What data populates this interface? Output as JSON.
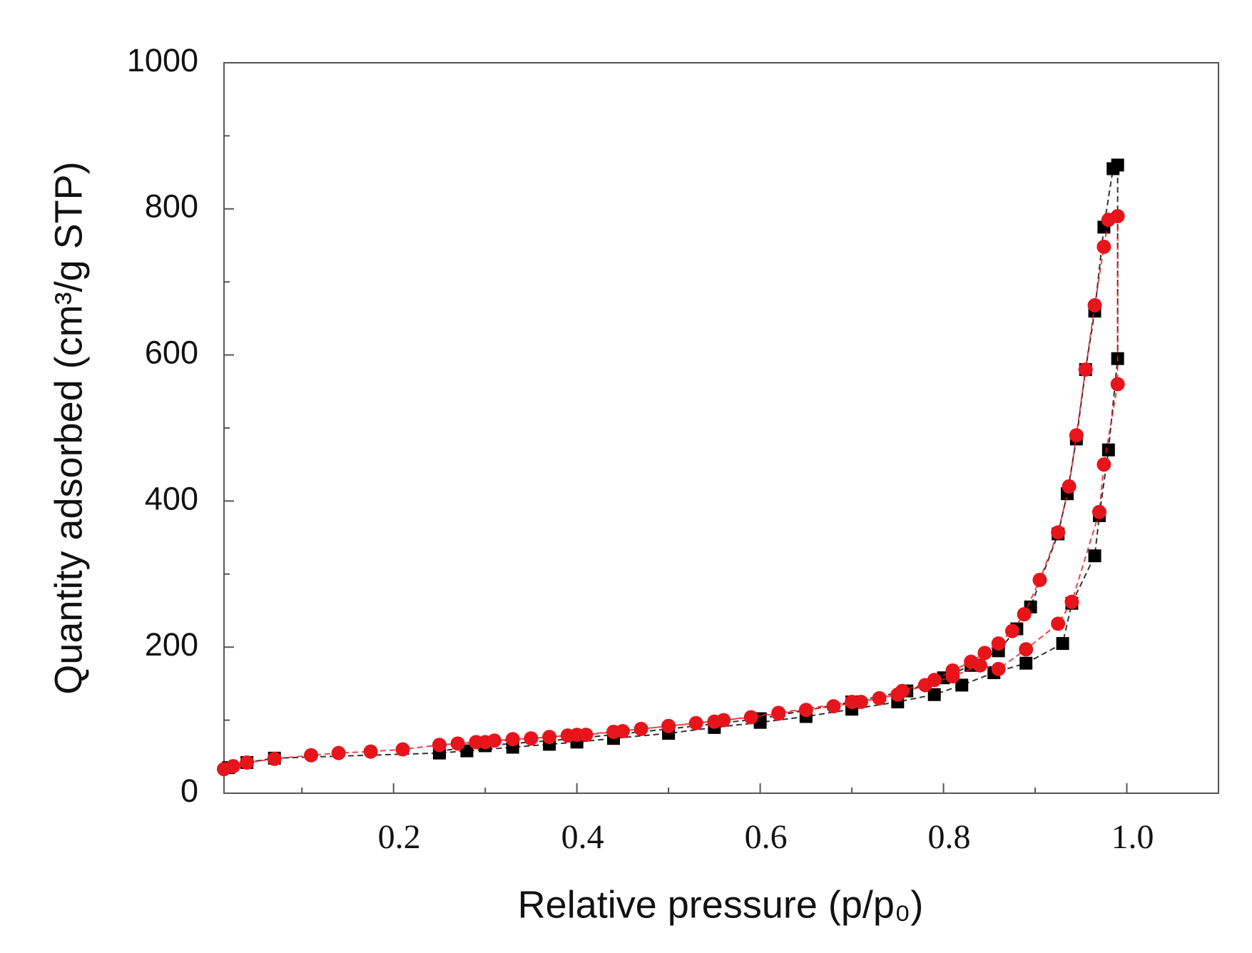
{
  "chart_data": {
    "type": "line",
    "xlabel": "Relative pressure (p/p₀)",
    "ylabel": "Quantity adsorbed (cm³/g STP)",
    "xlim": [
      0.015,
      1.1
    ],
    "ylim": [
      0,
      1000
    ],
    "xticks": [
      0.2,
      0.4,
      0.6,
      0.8,
      {
        "value": 1,
        "label": "1.0"
      }
    ],
    "xminorticks": [
      0.1,
      0.3,
      0.5,
      0.7,
      0.9
    ],
    "yticks": [
      0,
      200,
      400,
      600,
      800,
      1000
    ],
    "yminorticks": [
      100,
      300,
      500,
      700,
      900
    ],
    "grid": false,
    "series": [
      {
        "color": "#000000",
        "marker": "square",
        "x": [
          0.02,
          0.04,
          0.07,
          0.25,
          0.28,
          0.33,
          0.37,
          0.4,
          0.44,
          0.5,
          0.55,
          0.6,
          0.65,
          0.7,
          0.75,
          0.79,
          0.82,
          0.855,
          0.89,
          0.93,
          0.94,
          0.965,
          0.97,
          0.98,
          0.99,
          0.99,
          0.985,
          0.975,
          0.965,
          0.955,
          0.945,
          0.935,
          0.925,
          0.895,
          0.88,
          0.86,
          0.83,
          0.8,
          0.76,
          0.7,
          0.6,
          0.5,
          0.4,
          0.3,
          0.25
        ],
        "values": [
          35,
          42,
          48,
          55,
          58,
          63,
          67,
          70,
          75,
          82,
          90,
          97,
          105,
          115,
          125,
          135,
          148,
          165,
          178,
          205,
          260,
          325,
          380,
          470,
          595,
          860,
          855,
          775,
          660,
          580,
          485,
          410,
          355,
          255,
          225,
          195,
          175,
          158,
          140,
          125,
          102,
          88,
          75,
          65,
          58
        ]
      },
      {
        "color": "#e8141c",
        "marker": "circle",
        "x": [
          0.015,
          0.025,
          0.04,
          0.07,
          0.11,
          0.14,
          0.175,
          0.21,
          0.25,
          0.27,
          0.29,
          0.31,
          0.33,
          0.35,
          0.37,
          0.39,
          0.41,
          0.44,
          0.47,
          0.5,
          0.53,
          0.56,
          0.59,
          0.62,
          0.65,
          0.68,
          0.71,
          0.75,
          0.78,
          0.81,
          0.84,
          0.86,
          0.89,
          0.925,
          0.94,
          0.97,
          0.975,
          0.99,
          0.99,
          0.98,
          0.975,
          0.965,
          0.955,
          0.945,
          0.937,
          0.925,
          0.905,
          0.888,
          0.875,
          0.86,
          0.845,
          0.83,
          0.81,
          0.79,
          0.755,
          0.73,
          0.7,
          0.62,
          0.55,
          0.5,
          0.45,
          0.4,
          0.35,
          0.3,
          0.25
        ],
        "values": [
          33,
          37,
          42,
          47,
          52,
          55,
          57,
          60,
          66,
          68,
          70,
          72,
          74,
          75,
          77,
          79,
          80,
          84,
          88,
          92,
          96,
          100,
          104,
          109,
          114,
          119,
          125,
          135,
          148,
          160,
          175,
          170,
          197,
          232,
          262,
          385,
          450,
          560,
          790,
          785,
          748,
          668,
          580,
          490,
          420,
          357,
          292,
          245,
          222,
          205,
          192,
          180,
          168,
          155,
          140,
          130,
          125,
          110,
          98,
          92,
          85,
          80,
          75,
          70,
          66
        ]
      }
    ]
  }
}
